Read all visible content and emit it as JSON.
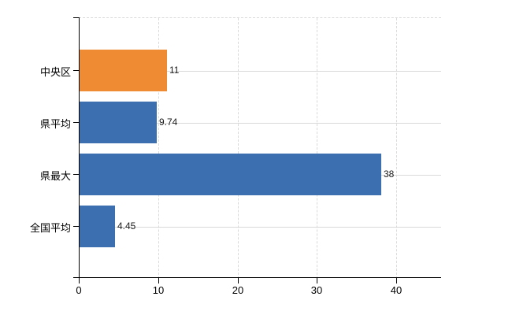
{
  "chart_data": {
    "type": "bar",
    "orientation": "horizontal",
    "title": "",
    "xlabel": "",
    "ylabel": "",
    "categories": [
      "中央区",
      "県平均",
      "県最大",
      "全国平均"
    ],
    "values": [
      11,
      9.74,
      38,
      4.45
    ],
    "value_labels": [
      "11",
      "9.74",
      "38",
      "4.45"
    ],
    "x_ticks": [
      0,
      10,
      20,
      30,
      40
    ],
    "x_tick_labels": [
      "0",
      "10",
      "20",
      "30",
      "40"
    ],
    "xlim": [
      0,
      45.7
    ],
    "legend": "none",
    "grid": {
      "vertical": "dashed",
      "horizontal_category_lines": "solid",
      "top_border": "dashed"
    },
    "highlight_index": 0,
    "colors": {
      "bar_default": "#3B6FAF",
      "bar_highlight": "#EE8B33",
      "gridline": "#D9D9D9",
      "axis": "#000000",
      "category_text": "#000000",
      "value_text": "#1A1A1A",
      "background": "#FFFFFF"
    }
  }
}
